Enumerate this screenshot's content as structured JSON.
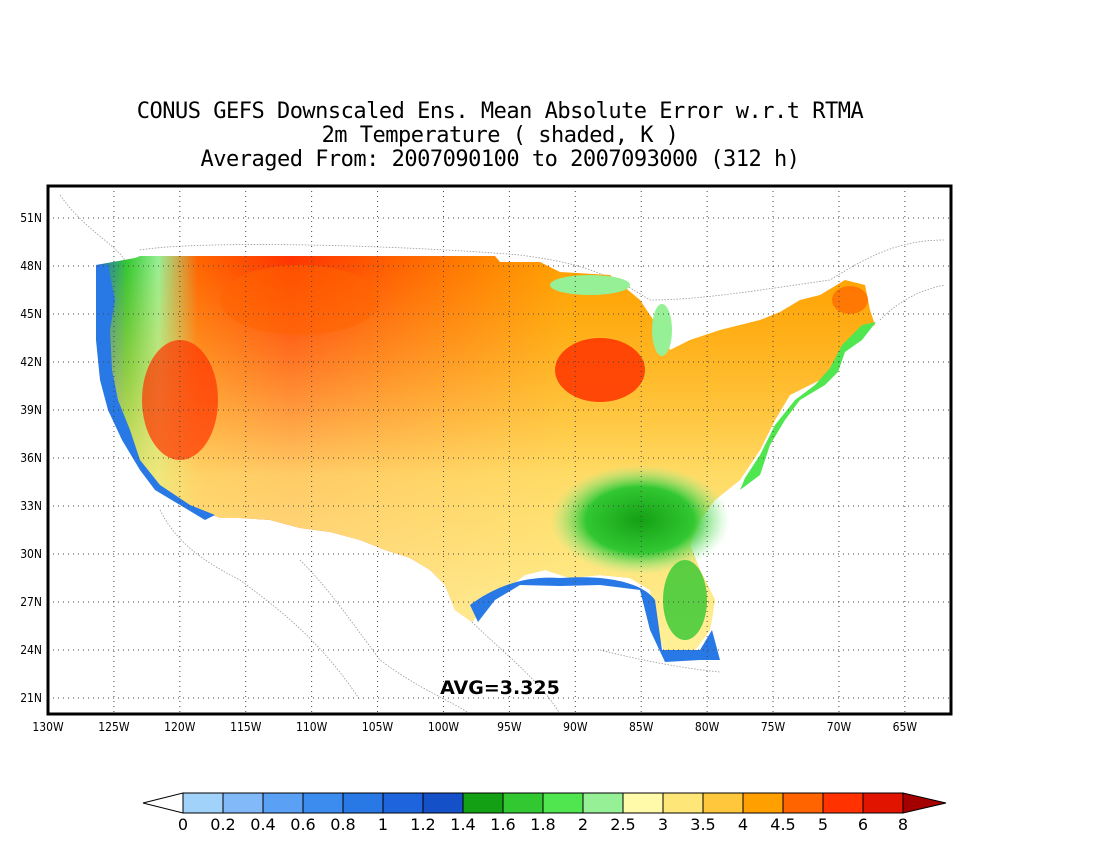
{
  "title": {
    "line1": "CONUS GEFS Downscaled Ens. Mean Absolute Error w.r.t RTMA",
    "line2": "2m Temperature ( shaded, K )",
    "line3": "Averaged From: 2007090100 to 2007093000 (312 h)"
  },
  "annotation": "AVG=3.325",
  "axes": {
    "lon_labels": [
      "130W",
      "125W",
      "120W",
      "115W",
      "110W",
      "105W",
      "100W",
      "95W",
      "90W",
      "85W",
      "80W",
      "75W",
      "70W",
      "65W"
    ],
    "lat_labels": [
      "21N",
      "24N",
      "27N",
      "30N",
      "33N",
      "36N",
      "39N",
      "42N",
      "45N",
      "48N",
      "51N"
    ],
    "lon_range": [
      -130,
      -61.5
    ],
    "lat_range": [
      20,
      53
    ]
  },
  "colorbar": {
    "labels": [
      "0",
      "0.2",
      "0.4",
      "0.6",
      "0.8",
      "1",
      "1.2",
      "1.4",
      "1.6",
      "1.8",
      "2",
      "2.5",
      "3",
      "3.5",
      "4",
      "4.5",
      "5",
      "6",
      "8"
    ],
    "colors": [
      "#a0d2fa",
      "#82b9f9",
      "#5aa0f5",
      "#3c8cf0",
      "#2878e6",
      "#1e64dc",
      "#1450c8",
      "#14a014",
      "#32c832",
      "#50e650",
      "#96f096",
      "#fffaaa",
      "#ffe678",
      "#ffc83c",
      "#ffa000",
      "#ff6400",
      "#ff3200",
      "#e11400",
      "#c00000"
    ],
    "under_color": "#ffffff",
    "over_color": "#a50000"
  }
}
